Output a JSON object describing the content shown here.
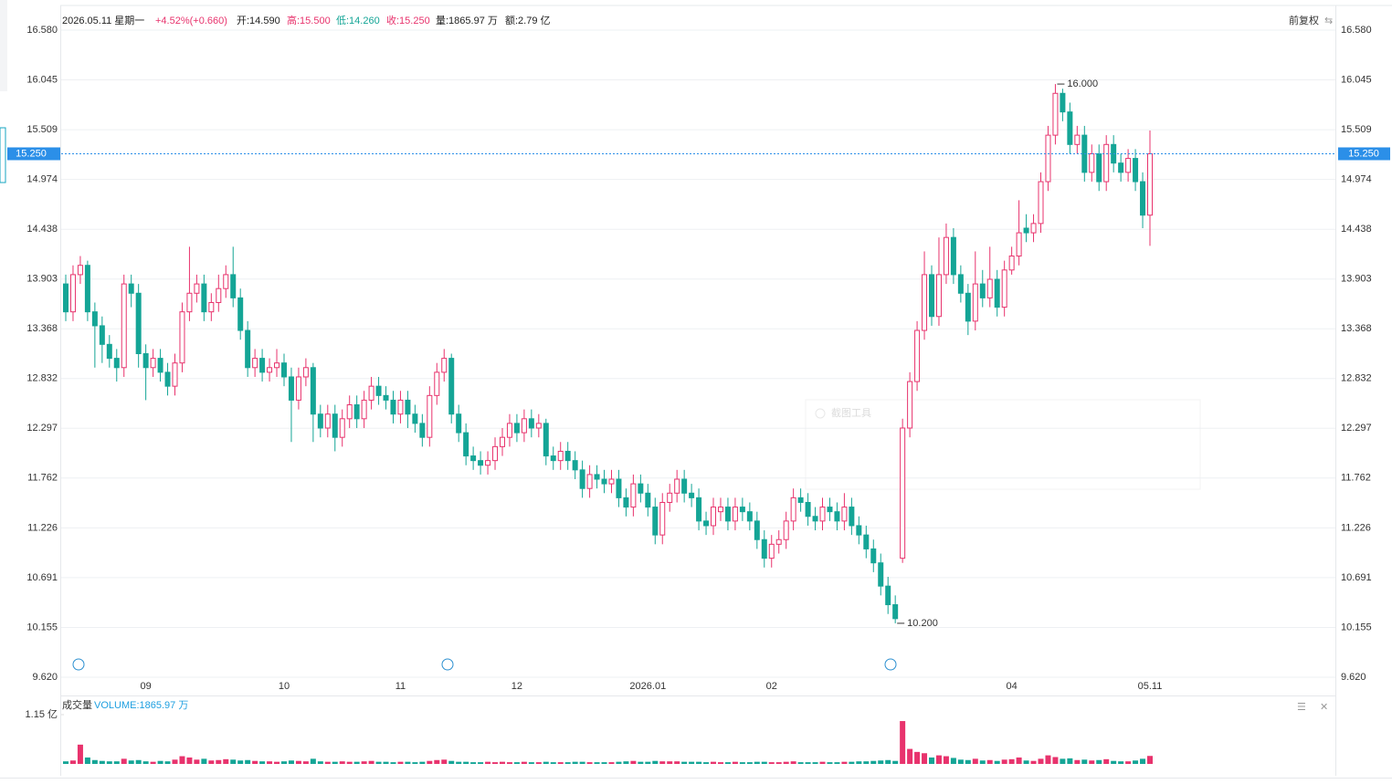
{
  "chart_data": {
    "type": "candlestick",
    "header": [
      {
        "text": "2026.05.11 星期一",
        "color": "#222222"
      },
      {
        "text": "+4.52%(+0.660)",
        "color": "#e8336d"
      },
      {
        "text": "开:14.590",
        "color": "#222222"
      },
      {
        "text": "高:15.500",
        "color": "#e8336d"
      },
      {
        "text": "低:14.260",
        "color": "#14a596"
      },
      {
        "text": "收:15.250",
        "color": "#e8336d"
      },
      {
        "text": "量:1865.97 万",
        "color": "#222222"
      },
      {
        "text": "额:2.79 亿",
        "color": "#222222"
      }
    ],
    "adjust_label": "前复权",
    "volume_title": "成交量",
    "volume_info": "VOLUME:1865.97 万",
    "watermark": "截图工具",
    "up_color": "#e8336d",
    "down_color": "#14a596",
    "grid": true,
    "last_price": {
      "value": 15.25,
      "label": "15.250"
    },
    "annotations": [
      {
        "index": 136,
        "value": 16,
        "label": "16.000"
      },
      {
        "index": 114,
        "value": 10.2,
        "label": "10.200"
      }
    ],
    "ylim": [
      9.62,
      16.58
    ],
    "yticks": [
      {
        "value": 16.58,
        "label": "16.580"
      },
      16.045,
      15.509,
      14.974,
      14.438,
      13.903,
      13.368,
      12.832,
      12.297,
      11.762,
      11.226,
      10.691,
      10.155,
      {
        "value": 9.62,
        "label": "9.620"
      }
    ],
    "volume_lim": [
      0,
      1.15
    ],
    "volume_ticks": [
      {
        "value": 1.15,
        "label": "1.15 亿"
      }
    ],
    "categories": [
      null,
      null,
      null,
      null,
      null,
      null,
      null,
      null,
      null,
      null,
      null,
      "09",
      null,
      null,
      null,
      null,
      null,
      null,
      null,
      null,
      null,
      null,
      null,
      null,
      null,
      null,
      null,
      null,
      null,
      null,
      "10",
      null,
      null,
      null,
      null,
      null,
      null,
      null,
      null,
      null,
      null,
      null,
      null,
      null,
      null,
      null,
      "11",
      null,
      null,
      null,
      null,
      null,
      null,
      null,
      null,
      null,
      null,
      null,
      null,
      null,
      null,
      null,
      "12",
      null,
      null,
      null,
      null,
      null,
      null,
      null,
      null,
      null,
      null,
      null,
      null,
      null,
      null,
      null,
      null,
      null,
      "2026.01",
      null,
      null,
      null,
      null,
      null,
      null,
      null,
      null,
      null,
      null,
      null,
      null,
      null,
      null,
      null,
      null,
      "02",
      null,
      null,
      null,
      null,
      null,
      null,
      null,
      null,
      null,
      null,
      null,
      null,
      null,
      null,
      null,
      null,
      null,
      null,
      null,
      null,
      null,
      null,
      null,
      null,
      null,
      null,
      null,
      null,
      null,
      null,
      null,
      null,
      "04",
      null,
      null,
      null,
      null,
      null,
      null,
      null,
      null,
      null,
      null,
      null,
      null,
      null,
      null,
      null,
      null,
      null,
      null,
      "05.11"
    ],
    "open": [
      13.85,
      13.55,
      13.95,
      14.05,
      13.55,
      13.4,
      13.2,
      13.05,
      12.95,
      13.85,
      13.75,
      13.1,
      12.95,
      13.05,
      12.9,
      12.75,
      13.0,
      13.55,
      13.75,
      13.85,
      13.55,
      13.65,
      13.8,
      13.95,
      13.7,
      13.35,
      12.95,
      13.05,
      12.9,
      12.95,
      13.0,
      12.85,
      12.6,
      12.85,
      12.95,
      12.45,
      12.3,
      12.45,
      12.2,
      12.4,
      12.55,
      12.4,
      12.6,
      12.75,
      12.65,
      12.6,
      12.45,
      12.6,
      12.45,
      12.35,
      12.2,
      12.65,
      12.9,
      13.05,
      12.45,
      12.25,
      12.0,
      11.95,
      11.9,
      11.95,
      12.1,
      12.2,
      12.35,
      12.25,
      12.4,
      12.3,
      12.35,
      12.0,
      11.95,
      12.05,
      11.95,
      11.85,
      11.65,
      11.8,
      11.75,
      11.7,
      11.75,
      11.55,
      11.45,
      11.7,
      11.6,
      11.45,
      11.15,
      11.5,
      11.6,
      11.75,
      11.6,
      11.55,
      11.3,
      11.25,
      11.4,
      11.45,
      11.3,
      11.45,
      11.4,
      11.3,
      11.1,
      10.9,
      11.05,
      11.1,
      11.3,
      11.55,
      11.5,
      11.35,
      11.3,
      11.45,
      11.4,
      11.3,
      11.45,
      11.25,
      11.15,
      11.0,
      10.85,
      10.6,
      10.4,
      10.9,
      12.3,
      12.8,
      13.35,
      13.95,
      13.5,
      13.95,
      14.35,
      13.95,
      13.75,
      13.45,
      13.85,
      13.7,
      13.9,
      13.6,
      14.0,
      14.15,
      14.45,
      14.4,
      14.5,
      14.95,
      15.45,
      15.9,
      15.7,
      15.35,
      15.45,
      15.05,
      15.25,
      14.95,
      15.35,
      15.15,
      15.05,
      15.2,
      14.95,
      14.59
    ],
    "high": [
      13.95,
      14.05,
      14.15,
      14.1,
      13.65,
      13.5,
      13.3,
      13.15,
      13.95,
      13.95,
      13.85,
      13.2,
      13.15,
      13.15,
      13.0,
      13.1,
      13.65,
      14.25,
      13.95,
      13.95,
      13.75,
      13.95,
      14.05,
      14.25,
      13.8,
      13.45,
      13.15,
      13.15,
      13.05,
      13.15,
      13.1,
      12.95,
      12.95,
      13.05,
      13.0,
      12.55,
      12.55,
      12.55,
      12.5,
      12.65,
      12.65,
      12.7,
      12.85,
      12.85,
      12.75,
      12.7,
      12.7,
      12.7,
      12.55,
      12.45,
      12.75,
      13.0,
      13.15,
      13.1,
      12.55,
      12.35,
      12.1,
      12.05,
      12.05,
      12.2,
      12.3,
      12.45,
      12.45,
      12.5,
      12.5,
      12.45,
      12.4,
      12.1,
      12.15,
      12.15,
      12.05,
      11.95,
      11.9,
      11.9,
      11.85,
      11.85,
      11.85,
      11.65,
      11.8,
      11.8,
      11.7,
      11.55,
      11.6,
      11.7,
      11.85,
      11.85,
      11.7,
      11.65,
      11.4,
      11.55,
      11.55,
      11.55,
      11.55,
      11.55,
      11.5,
      11.4,
      11.2,
      11.15,
      11.2,
      11.4,
      11.65,
      11.65,
      11.6,
      11.45,
      11.55,
      11.55,
      11.5,
      11.6,
      11.55,
      11.35,
      11.25,
      11.1,
      10.95,
      10.7,
      10.5,
      12.4,
      12.9,
      13.45,
      14.2,
      14.05,
      14.35,
      14.5,
      14.45,
      14.05,
      13.85,
      14.2,
      14.0,
      14.25,
      14.0,
      14.1,
      14.25,
      14.75,
      14.6,
      14.6,
      15.05,
      15.55,
      16.0,
      15.95,
      15.8,
      15.55,
      15.55,
      15.35,
      15.35,
      15.45,
      15.45,
      15.25,
      15.3,
      15.3,
      15.05,
      15.5
    ],
    "low": [
      13.45,
      13.45,
      13.85,
      13.45,
      12.95,
      13.0,
      12.95,
      12.8,
      12.85,
      13.6,
      12.95,
      12.6,
      12.85,
      12.8,
      12.65,
      12.65,
      12.9,
      13.45,
      13.65,
      13.45,
      13.45,
      13.55,
      13.7,
      13.6,
      13.25,
      12.85,
      12.85,
      12.8,
      12.8,
      12.85,
      12.75,
      12.15,
      12.5,
      12.75,
      12.15,
      12.2,
      12.2,
      12.05,
      12.1,
      12.3,
      12.3,
      12.3,
      12.5,
      12.55,
      12.5,
      12.35,
      12.35,
      12.3,
      12.25,
      12.1,
      12.1,
      12.55,
      12.8,
      12.35,
      12.15,
      11.9,
      11.85,
      11.8,
      11.8,
      11.85,
      12.0,
      12.1,
      12.15,
      12.15,
      12.2,
      12.2,
      11.9,
      11.85,
      11.85,
      11.85,
      11.75,
      11.55,
      11.55,
      11.65,
      11.6,
      11.6,
      11.45,
      11.35,
      11.35,
      11.5,
      11.35,
      11.05,
      11.05,
      11.4,
      11.5,
      11.5,
      11.45,
      11.2,
      11.15,
      11.15,
      11.3,
      11.2,
      11.2,
      11.3,
      11.2,
      11.0,
      10.8,
      10.8,
      10.95,
      11.0,
      11.2,
      11.4,
      11.25,
      11.2,
      11.2,
      11.3,
      11.2,
      11.2,
      11.15,
      11.05,
      10.9,
      10.75,
      10.5,
      10.3,
      10.2,
      10.85,
      12.2,
      12.7,
      13.25,
      13.4,
      13.4,
      13.85,
      13.85,
      13.65,
      13.3,
      13.35,
      13.6,
      13.6,
      13.5,
      13.5,
      13.95,
      14.05,
      14.3,
      14.3,
      14.4,
      14.85,
      15.35,
      15.6,
      15.25,
      15.25,
      14.95,
      14.95,
      14.85,
      14.85,
      15.05,
      14.95,
      14.95,
      14.85,
      14.45,
      14.26
    ],
    "close": [
      13.55,
      13.95,
      14.05,
      13.55,
      13.4,
      13.2,
      13.05,
      12.95,
      13.85,
      13.75,
      13.1,
      12.95,
      13.05,
      12.9,
      12.75,
      13.0,
      13.55,
      13.75,
      13.85,
      13.55,
      13.65,
      13.8,
      13.95,
      13.7,
      13.35,
      12.95,
      13.05,
      12.9,
      12.95,
      13.0,
      12.85,
      12.6,
      12.85,
      12.95,
      12.45,
      12.3,
      12.45,
      12.2,
      12.4,
      12.55,
      12.4,
      12.6,
      12.75,
      12.65,
      12.6,
      12.45,
      12.6,
      12.45,
      12.35,
      12.2,
      12.65,
      12.9,
      13.05,
      12.45,
      12.25,
      12.0,
      11.95,
      11.9,
      11.95,
      12.1,
      12.2,
      12.35,
      12.25,
      12.4,
      12.3,
      12.35,
      12.0,
      11.95,
      12.05,
      11.95,
      11.85,
      11.65,
      11.8,
      11.75,
      11.7,
      11.75,
      11.55,
      11.45,
      11.7,
      11.6,
      11.45,
      11.15,
      11.5,
      11.6,
      11.75,
      11.6,
      11.55,
      11.3,
      11.25,
      11.45,
      11.45,
      11.3,
      11.45,
      11.4,
      11.3,
      11.1,
      10.9,
      11.05,
      11.1,
      11.3,
      11.55,
      11.5,
      11.35,
      11.3,
      11.45,
      11.4,
      11.3,
      11.45,
      11.25,
      11.15,
      11.0,
      10.85,
      10.6,
      10.4,
      10.25,
      12.3,
      12.8,
      13.35,
      13.95,
      13.5,
      13.95,
      14.35,
      13.95,
      13.75,
      13.45,
      13.85,
      13.7,
      13.9,
      13.6,
      14.0,
      14.15,
      14.4,
      14.4,
      14.5,
      14.95,
      15.45,
      15.9,
      15.7,
      15.35,
      15.45,
      15.05,
      15.25,
      14.95,
      15.35,
      15.15,
      15.05,
      15.2,
      14.95,
      14.59,
      15.25
    ],
    "volume": [
      0.06,
      0.08,
      0.45,
      0.15,
      0.09,
      0.07,
      0.06,
      0.06,
      0.12,
      0.08,
      0.09,
      0.06,
      0.05,
      0.07,
      0.06,
      0.1,
      0.18,
      0.15,
      0.1,
      0.12,
      0.08,
      0.09,
      0.11,
      0.1,
      0.08,
      0.09,
      0.07,
      0.06,
      0.06,
      0.05,
      0.06,
      0.08,
      0.07,
      0.06,
      0.12,
      0.06,
      0.05,
      0.05,
      0.06,
      0.05,
      0.05,
      0.06,
      0.07,
      0.05,
      0.05,
      0.04,
      0.05,
      0.05,
      0.04,
      0.05,
      0.07,
      0.09,
      0.1,
      0.07,
      0.05,
      0.05,
      0.04,
      0.04,
      0.05,
      0.04,
      0.05,
      0.04,
      0.04,
      0.05,
      0.04,
      0.04,
      0.05,
      0.04,
      0.04,
      0.04,
      0.05,
      0.05,
      0.04,
      0.04,
      0.04,
      0.04,
      0.05,
      0.06,
      0.07,
      0.05,
      0.05,
      0.07,
      0.06,
      0.06,
      0.06,
      0.05,
      0.05,
      0.05,
      0.04,
      0.05,
      0.04,
      0.04,
      0.05,
      0.04,
      0.04,
      0.05,
      0.05,
      0.04,
      0.04,
      0.05,
      0.06,
      0.04,
      0.04,
      0.04,
      0.05,
      0.04,
      0.04,
      0.05,
      0.05,
      0.06,
      0.06,
      0.07,
      0.08,
      0.09,
      0.07,
      1.0,
      0.35,
      0.28,
      0.25,
      0.15,
      0.2,
      0.18,
      0.14,
      0.1,
      0.09,
      0.12,
      0.08,
      0.09,
      0.07,
      0.1,
      0.11,
      0.15,
      0.08,
      0.07,
      0.12,
      0.2,
      0.16,
      0.12,
      0.13,
      0.09,
      0.1,
      0.08,
      0.09,
      0.11,
      0.07,
      0.06,
      0.06,
      0.08,
      0.12,
      0.1866
    ]
  }
}
